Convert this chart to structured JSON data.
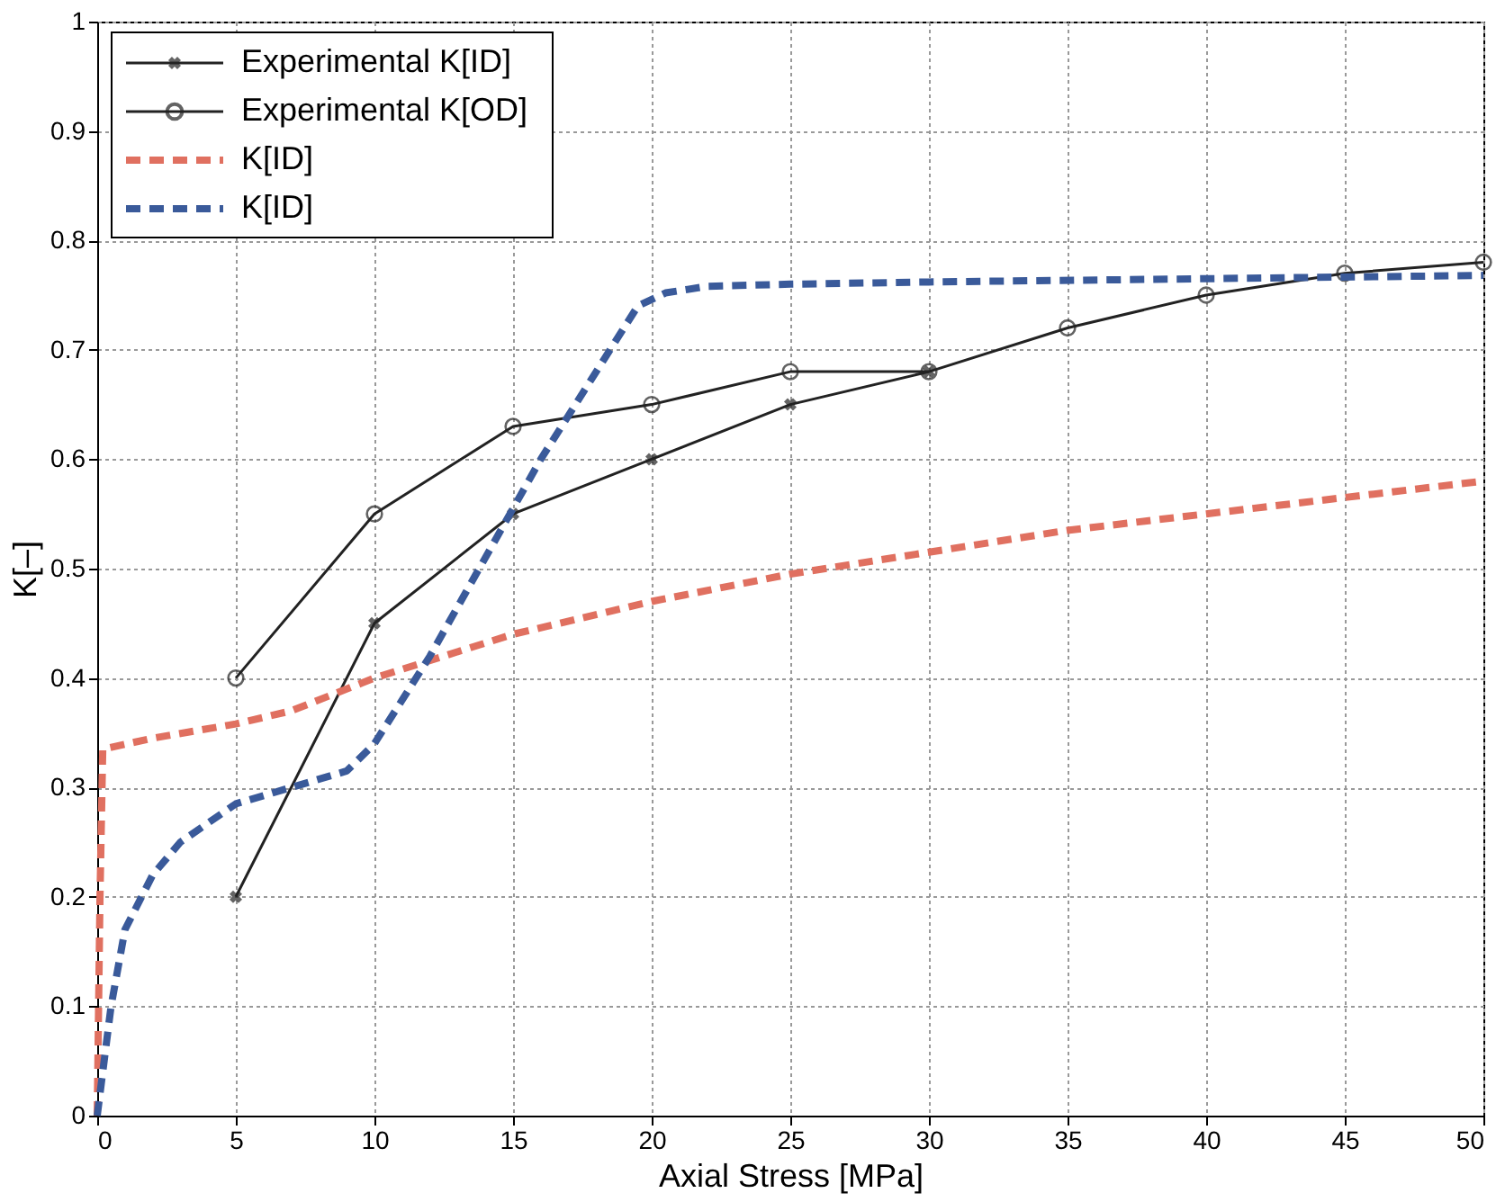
{
  "chart_data": {
    "type": "line",
    "xlabel": "Axial Stress [MPa]",
    "ylabel": "K[–]",
    "xlim": [
      0,
      50
    ],
    "ylim": [
      0,
      1
    ],
    "xticks": [
      0,
      5,
      10,
      15,
      20,
      25,
      30,
      35,
      40,
      45,
      50
    ],
    "yticks": [
      0,
      0.1,
      0.2,
      0.3,
      0.4,
      0.5,
      0.6,
      0.7,
      0.8,
      0.9,
      1
    ],
    "grid": true,
    "legend": "top left",
    "series": [
      {
        "name": "Experimental K[ID]",
        "color": "#222222",
        "marker": "cross",
        "line_style": "solid",
        "x": [
          5,
          10,
          15,
          20,
          25,
          30
        ],
        "values": [
          0.2,
          0.45,
          0.55,
          0.6,
          0.65,
          0.68
        ]
      },
      {
        "name": "Experimental K[OD]",
        "color": "#222222",
        "marker": "circle",
        "line_style": "solid",
        "x": [
          5,
          10,
          15,
          20,
          25,
          30,
          35,
          40,
          45,
          50
        ],
        "values": [
          0.4,
          0.55,
          0.63,
          0.65,
          0.68,
          0.68,
          0.72,
          0.75,
          0.77,
          0.78
        ]
      },
      {
        "name": "K[ID]",
        "color": "#e07060",
        "marker": "none",
        "line_style": "dashed",
        "x": [
          0,
          0.1,
          0.2,
          2,
          5,
          7,
          10,
          15,
          20,
          25,
          30,
          35,
          40,
          45,
          50
        ],
        "values": [
          0,
          0.2,
          0.335,
          0.345,
          0.358,
          0.37,
          0.4,
          0.44,
          0.47,
          0.495,
          0.515,
          0.535,
          0.55,
          0.565,
          0.58
        ]
      },
      {
        "name": "K[ID]",
        "color": "#3a5a9a",
        "marker": "none",
        "line_style": "dashed",
        "x": [
          0,
          0.5,
          1,
          2,
          3,
          5,
          7,
          9,
          10,
          12,
          14,
          16,
          18,
          19.5,
          20.5,
          22,
          25,
          30,
          40,
          50
        ],
        "values": [
          0,
          0.1,
          0.17,
          0.22,
          0.25,
          0.285,
          0.3,
          0.315,
          0.34,
          0.42,
          0.51,
          0.6,
          0.68,
          0.74,
          0.752,
          0.758,
          0.76,
          0.762,
          0.765,
          0.768
        ]
      }
    ]
  }
}
